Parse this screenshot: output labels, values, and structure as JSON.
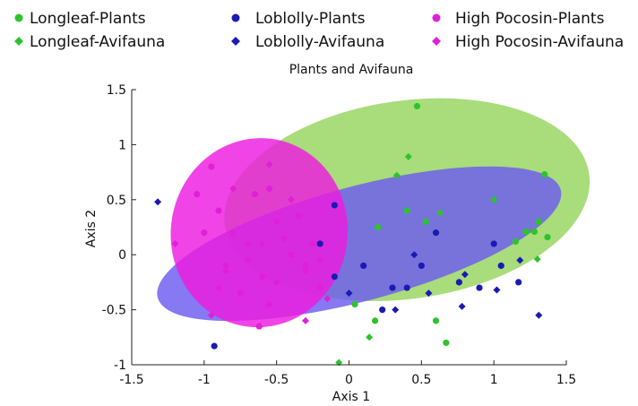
{
  "chart_data": {
    "type": "scatter",
    "title": "Plants and Avifauna",
    "xlabel": "Axis 1",
    "ylabel": "Axis 2",
    "xlim": [
      -1.5,
      1.5
    ],
    "ylim": [
      -1,
      1.5
    ],
    "xticks": [
      "-1.5",
      "-1",
      "-0.5",
      "0",
      "0.5",
      "1",
      "1.5"
    ],
    "yticks": [
      "-1",
      "-0.5",
      "0",
      "0.5",
      "1",
      "1.5"
    ],
    "grid": false,
    "legend_position": "top",
    "colors": {
      "longleaf_marker": "#2ec32e",
      "longleaf_fill": "#93d35a",
      "loblolly_marker": "#1a1ab5",
      "loblolly_fill": "#6b5cf0",
      "pocosin_marker": "#e020d8",
      "pocosin_fill": "#ee1be0"
    },
    "ellipses": [
      {
        "name": "Longleaf",
        "cx": 0.4,
        "cy": 0.5,
        "rx": 1.27,
        "ry": 0.9,
        "angle_deg": -8,
        "color": "#93d35a",
        "opacity": 0.8
      },
      {
        "name": "Loblolly",
        "cx": 0.07,
        "cy": 0.1,
        "rx": 1.44,
        "ry": 0.52,
        "angle_deg": -15,
        "color": "#6b5cf0",
        "opacity": 0.82
      },
      {
        "name": "High Pocosin",
        "cx": -0.62,
        "cy": 0.2,
        "rx": 0.61,
        "ry": 0.86,
        "angle_deg": 8,
        "color": "#ee1be0",
        "opacity": 0.82
      }
    ],
    "series": [
      {
        "name": "Longleaf-Plants",
        "marker": "circle",
        "color": "#2ec32e",
        "points": [
          [
            0.47,
            1.35
          ],
          [
            1.35,
            0.73
          ],
          [
            0.4,
            0.4
          ],
          [
            0.53,
            0.3
          ],
          [
            1.15,
            0.12
          ],
          [
            1.22,
            0.21
          ],
          [
            1.28,
            0.21
          ],
          [
            1.31,
            0.3
          ],
          [
            1.37,
            0.16
          ],
          [
            0.2,
            0.25
          ],
          [
            0.04,
            -0.45
          ],
          [
            0.18,
            -0.6
          ],
          [
            0.6,
            -0.6
          ],
          [
            0.67,
            -0.8
          ]
        ]
      },
      {
        "name": "Longleaf-Avifauna",
        "marker": "diamond",
        "color": "#2ec32e",
        "points": [
          [
            0.41,
            0.89
          ],
          [
            0.33,
            0.72
          ],
          [
            1.0,
            0.5
          ],
          [
            0.63,
            0.38
          ],
          [
            1.23,
            0.21
          ],
          [
            1.3,
            -0.04
          ],
          [
            -0.07,
            -0.98
          ],
          [
            0.14,
            -0.75
          ]
        ]
      },
      {
        "name": "Loblolly-Plants",
        "marker": "circle",
        "color": "#1a1ab5",
        "points": [
          [
            -0.93,
            -0.83
          ],
          [
            1.0,
            0.1
          ],
          [
            0.6,
            0.2
          ],
          [
            0.1,
            -0.1
          ],
          [
            0.3,
            -0.3
          ],
          [
            0.5,
            -0.1
          ],
          [
            0.76,
            -0.25
          ],
          [
            -0.1,
            -0.2
          ],
          [
            -0.1,
            0.45
          ],
          [
            0.23,
            -0.5
          ],
          [
            0.4,
            -0.3
          ],
          [
            0.9,
            -0.3
          ],
          [
            1.05,
            -0.1
          ],
          [
            1.17,
            -0.25
          ],
          [
            -0.2,
            0.1
          ]
        ]
      },
      {
        "name": "Loblolly-Avifauna",
        "marker": "diamond",
        "color": "#1a1ab5",
        "points": [
          [
            -1.32,
            0.48
          ],
          [
            1.31,
            -0.55
          ],
          [
            0.32,
            -0.5
          ],
          [
            0.55,
            -0.35
          ],
          [
            0.8,
            -0.18
          ],
          [
            1.18,
            -0.05
          ],
          [
            0.0,
            -0.35
          ],
          [
            0.45,
            0.0
          ],
          [
            0.78,
            -0.47
          ],
          [
            1.02,
            -0.32
          ]
        ]
      },
      {
        "name": "High Pocosin-Plants",
        "marker": "circle",
        "color": "#e020d8",
        "points": [
          [
            -0.62,
            -0.65
          ],
          [
            -0.95,
            0.8
          ],
          [
            -0.55,
            0.6
          ],
          [
            -0.9,
            0.4
          ],
          [
            -0.8,
            0.2
          ],
          [
            -0.7,
            0.1
          ],
          [
            -0.5,
            0.3
          ],
          [
            -0.4,
            0.0
          ],
          [
            -0.85,
            -0.1
          ],
          [
            -0.6,
            -0.2
          ],
          [
            -0.3,
            -0.1
          ],
          [
            -0.2,
            -0.3
          ],
          [
            -0.75,
            -0.35
          ],
          [
            -1.0,
            0.2
          ],
          [
            -0.45,
            0.15
          ],
          [
            -0.55,
            -0.45
          ],
          [
            -0.35,
            0.35
          ],
          [
            -0.65,
            0.55
          ],
          [
            -1.05,
            0.55
          ],
          [
            -0.25,
            0.1
          ]
        ]
      },
      {
        "name": "High Pocosin-Avifauna",
        "marker": "diamond",
        "color": "#e020d8",
        "points": [
          [
            -0.95,
            -0.55
          ],
          [
            -0.55,
            0.82
          ],
          [
            -0.9,
            -0.3
          ],
          [
            -0.8,
            0.6
          ],
          [
            -0.6,
            0.1
          ],
          [
            -0.5,
            -0.25
          ],
          [
            -0.3,
            -0.15
          ],
          [
            -0.2,
            -0.05
          ],
          [
            -0.15,
            -0.4
          ],
          [
            -0.7,
            -0.05
          ],
          [
            -0.4,
            0.5
          ],
          [
            -1.2,
            0.1
          ],
          [
            -0.85,
            -0.15
          ],
          [
            -0.3,
            -0.6
          ]
        ]
      }
    ]
  }
}
